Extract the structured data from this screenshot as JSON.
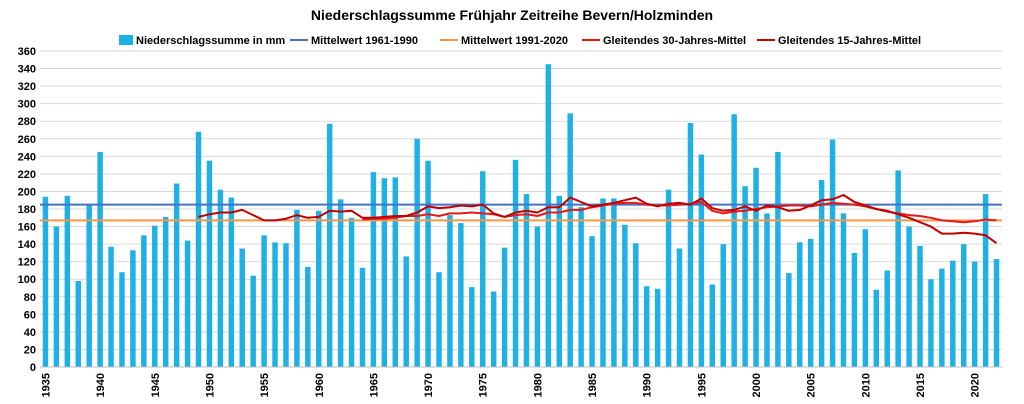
{
  "chart_data": {
    "type": "bar",
    "title": "Niederschlagssumme Frühjahr Zeitreihe Bevern/Holzminden",
    "xlabel": "",
    "ylabel": "",
    "ylim": [
      0,
      360
    ],
    "yticks": [
      0,
      20,
      40,
      60,
      80,
      100,
      120,
      140,
      160,
      180,
      200,
      220,
      240,
      260,
      280,
      300,
      320,
      340,
      360
    ],
    "xtick_labels": [
      "1935",
      "1940",
      "1945",
      "1950",
      "1955",
      "1960",
      "1965",
      "1970",
      "1975",
      "1980",
      "1985",
      "1990",
      "1995",
      "2000",
      "2005",
      "2010",
      "2015",
      "2020"
    ],
    "grid": true,
    "legend_position": "top",
    "years": [
      1935,
      1936,
      1937,
      1938,
      1939,
      1940,
      1941,
      1942,
      1943,
      1944,
      1945,
      1946,
      1947,
      1948,
      1949,
      1950,
      1951,
      1952,
      1953,
      1954,
      1955,
      1956,
      1957,
      1958,
      1959,
      1960,
      1961,
      1962,
      1963,
      1964,
      1965,
      1966,
      1967,
      1968,
      1969,
      1970,
      1971,
      1972,
      1973,
      1974,
      1975,
      1976,
      1977,
      1978,
      1979,
      1980,
      1981,
      1982,
      1983,
      1984,
      1985,
      1986,
      1987,
      1988,
      1989,
      1990,
      1991,
      1992,
      1993,
      1994,
      1995,
      1996,
      1997,
      1998,
      1999,
      2000,
      2001,
      2002,
      2003,
      2004,
      2005,
      2006,
      2007,
      2008,
      2009,
      2010,
      2011,
      2012,
      2013,
      2014,
      2015,
      2016,
      2017,
      2018,
      2019,
      2020,
      2021,
      2022
    ],
    "series": [
      {
        "name": "Niederschlagssumme in mm",
        "kind": "bar",
        "color": "#1fb1e6",
        "values": [
          194,
          160,
          195,
          98,
          185,
          245,
          137,
          108,
          133,
          150,
          161,
          171,
          209,
          144,
          268,
          235,
          202,
          193,
          135,
          104,
          150,
          142,
          141,
          179,
          114,
          178,
          277,
          191,
          170,
          113,
          222,
          215,
          216,
          126,
          260,
          235,
          108,
          173,
          164,
          91,
          223,
          86,
          136,
          236,
          197,
          160,
          345,
          195,
          289,
          182,
          149,
          192,
          192,
          162,
          141,
          92,
          89,
          202,
          135,
          278,
          242,
          94,
          140,
          288,
          206,
          227,
          175,
          245,
          107,
          142,
          146,
          213,
          259,
          175,
          130,
          157,
          88,
          110,
          224,
          160,
          138,
          100,
          112,
          121,
          140,
          120,
          197,
          123
        ]
      },
      {
        "name": "Mittelwert 1961-1990",
        "kind": "hline",
        "color": "#4472c4",
        "value": 185
      },
      {
        "name": "Mittelwert 1991-2020",
        "kind": "hline",
        "color": "#f79646",
        "value": 167
      },
      {
        "name": "Gleitendes 30-Jahres-Mittel",
        "kind": "line",
        "color": "#e31a1c",
        "x": [
          1964,
          1965,
          1966,
          1967,
          1968,
          1969,
          1970,
          1971,
          1972,
          1973,
          1974,
          1975,
          1976,
          1977,
          1978,
          1979,
          1980,
          1981,
          1982,
          1983,
          1984,
          1985,
          1986,
          1987,
          1988,
          1989,
          1990,
          1991,
          1992,
          1993,
          1994,
          1995,
          1996,
          1997,
          1998,
          1999,
          2000,
          2001,
          2002,
          2003,
          2004,
          2005,
          2006,
          2007,
          2008,
          2009,
          2010,
          2011,
          2012,
          2013,
          2014,
          2015,
          2016,
          2017,
          2018,
          2019,
          2020,
          2021,
          2022
        ],
        "values": [
          168,
          169,
          169,
          170,
          172,
          172,
          174,
          172,
          175,
          175,
          176,
          175,
          174,
          171,
          173,
          174,
          172,
          176,
          176,
          179,
          179,
          182,
          184,
          186,
          187,
          187,
          185,
          184,
          184,
          185,
          186,
          188,
          178,
          175,
          177,
          178,
          180,
          182,
          183,
          184,
          184,
          183,
          185,
          187,
          186,
          185,
          183,
          180,
          177,
          175,
          173,
          172,
          170,
          167,
          166,
          165,
          166,
          168,
          167
        ]
      },
      {
        "name": "Gleitendes 15-Jahres-Mittel",
        "kind": "line",
        "color": "#c00000",
        "x": [
          1949,
          1950,
          1951,
          1952,
          1953,
          1954,
          1955,
          1956,
          1957,
          1958,
          1959,
          1960,
          1961,
          1962,
          1963,
          1964,
          1965,
          1966,
          1967,
          1968,
          1969,
          1970,
          1971,
          1972,
          1973,
          1974,
          1975,
          1976,
          1977,
          1978,
          1979,
          1980,
          1981,
          1982,
          1983,
          1984,
          1985,
          1986,
          1987,
          1988,
          1989,
          1990,
          1991,
          1992,
          1993,
          1994,
          1995,
          1996,
          1997,
          1998,
          1999,
          2000,
          2001,
          2002,
          2003,
          2004,
          2005,
          2006,
          2007,
          2008,
          2009,
          2010,
          2011,
          2012,
          2013,
          2014,
          2015,
          2016,
          2017,
          2018,
          2019,
          2020,
          2021,
          2022
        ],
        "values": [
          171,
          174,
          176,
          176,
          179,
          173,
          167,
          167,
          169,
          173,
          170,
          171,
          178,
          177,
          178,
          170,
          170,
          171,
          172,
          172,
          176,
          183,
          181,
          182,
          184,
          183,
          185,
          175,
          171,
          176,
          178,
          176,
          182,
          182,
          193,
          188,
          183,
          185,
          187,
          190,
          193,
          186,
          183,
          186,
          187,
          185,
          192,
          181,
          178,
          179,
          183,
          178,
          184,
          182,
          178,
          179,
          184,
          190,
          191,
          196,
          188,
          184,
          180,
          178,
          174,
          170,
          165,
          160,
          152,
          152,
          153,
          152,
          150,
          141
        ]
      }
    ]
  }
}
